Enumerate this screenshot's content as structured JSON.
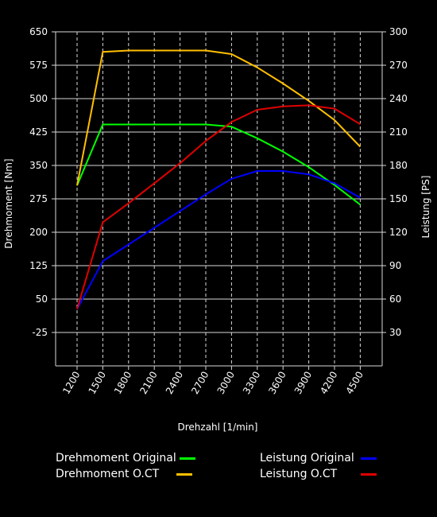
{
  "chart_data": {
    "type": "line",
    "title": "",
    "xlabel": "Drehzahl [1/min]",
    "ylabel_left": "Drehmoment [Nm]",
    "ylabel_right": "Leistung [PS]",
    "x": [
      1200,
      1500,
      1800,
      2100,
      2400,
      2700,
      3000,
      3300,
      3600,
      3900,
      4200,
      4500
    ],
    "x_tick_labels": [
      "1200",
      "1500",
      "1800",
      "2100",
      "2400",
      "2700",
      "3000",
      "3300",
      "3600",
      "3900",
      "4200",
      "4500"
    ],
    "y_left_ticks": [
      "650",
      "575",
      "500",
      "425",
      "350",
      "275",
      "200",
      "125",
      "50",
      "-25"
    ],
    "y_right_ticks": [
      "300",
      "270",
      "240",
      "210",
      "180",
      "150",
      "120",
      "90",
      "60",
      "30"
    ],
    "ylim_left": [
      -100,
      650
    ],
    "ylim_right": [
      0,
      300
    ],
    "grid": true,
    "legend_position": "bottom",
    "series": [
      {
        "name": "Drehmoment Original",
        "axis": "left",
        "color": "#00ff00",
        "values": [
          305,
          442,
          442,
          442,
          442,
          442,
          437,
          411,
          381,
          346,
          306,
          262
        ]
      },
      {
        "name": "Drehmoment O.CT",
        "axis": "left",
        "color": "#ffbf00",
        "values": [
          305,
          605,
          608,
          608,
          608,
          608,
          600,
          570,
          534,
          495,
          452,
          392
        ]
      },
      {
        "name": "Leistung Original",
        "axis": "right",
        "color": "#0000ff",
        "values": [
          51,
          94,
          109,
          124,
          139,
          154,
          168,
          175,
          175,
          172,
          164,
          151
        ]
      },
      {
        "name": "Leistung O.CT",
        "axis": "right",
        "color": "#e00000",
        "values": [
          51,
          129,
          146,
          164,
          182,
          202,
          219,
          230,
          233,
          234,
          231,
          217
        ]
      }
    ]
  }
}
